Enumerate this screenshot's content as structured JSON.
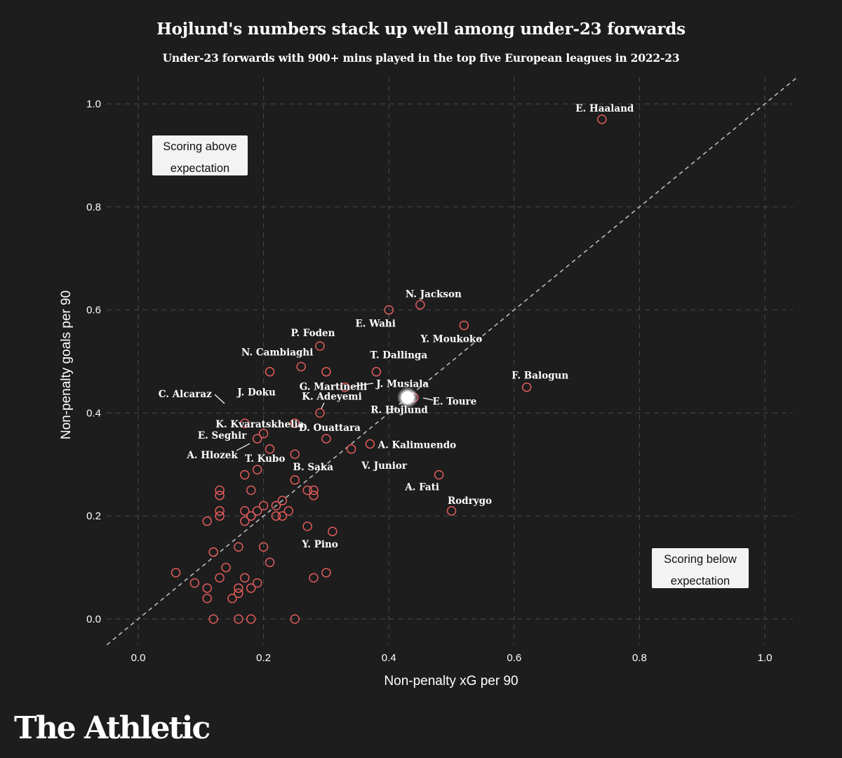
{
  "chart_data": {
    "type": "scatter",
    "title": "Hojlund's numbers stack up well among under-23 forwards",
    "subtitle": "Under-23 forwards with 900+ mins played in the top five European leagues in 2022-23",
    "xlabel": "Non-penalty xG per 90",
    "ylabel": "Non-penalty goals per 90",
    "xlim": [
      -0.05,
      1.05
    ],
    "ylim": [
      -0.05,
      1.05
    ],
    "x_ticks": [
      "0.0",
      "0.2",
      "0.4",
      "0.6",
      "0.8",
      "1.0"
    ],
    "y_ticks": [
      "0.0",
      "0.2",
      "0.4",
      "0.6",
      "0.8",
      "1.0"
    ],
    "grid": true,
    "reference_line": "y = x",
    "annotations": [
      "Scoring above expectation",
      "Scoring below expectation"
    ],
    "colors": {
      "background": "#1d1d1d",
      "marker": "#e05b5b",
      "highlight": "#ffffff",
      "grid": "#4a4a4a",
      "reference": "#bbbbbb"
    },
    "highlight": {
      "name": "R. Hojlund",
      "x": 0.43,
      "y": 0.43
    },
    "labeled_points": [
      {
        "name": "E. Haaland",
        "x": 0.74,
        "y": 0.97
      },
      {
        "name": "N. Jackson",
        "x": 0.45,
        "y": 0.61
      },
      {
        "name": "E. Wahi",
        "x": 0.4,
        "y": 0.6
      },
      {
        "name": "Y. Moukoko",
        "x": 0.52,
        "y": 0.57
      },
      {
        "name": "P. Foden",
        "x": 0.29,
        "y": 0.53
      },
      {
        "name": "T. Dallinga",
        "x": 0.38,
        "y": 0.48
      },
      {
        "name": "N. Cambiaghi",
        "x": 0.26,
        "y": 0.49
      },
      {
        "name": "G. Martinelli",
        "x": 0.3,
        "y": 0.48
      },
      {
        "name": "J. Doku",
        "x": 0.21,
        "y": 0.48
      },
      {
        "name": "J. Musiala",
        "x": 0.33,
        "y": 0.45
      },
      {
        "name": "F. Balogun",
        "x": 0.62,
        "y": 0.45
      },
      {
        "name": "E. Toure",
        "x": 0.44,
        "y": 0.43
      },
      {
        "name": "C. Alcaraz",
        "x": 0.17,
        "y": 0.38
      },
      {
        "name": "K. Adeyemi",
        "x": 0.29,
        "y": 0.4
      },
      {
        "name": "K. Kvaratskhelia",
        "x": 0.25,
        "y": 0.38
      },
      {
        "name": "D. Ouattara",
        "x": 0.3,
        "y": 0.35
      },
      {
        "name": "A. Kalimuendo",
        "x": 0.37,
        "y": 0.34
      },
      {
        "name": "E. Seghir",
        "x": 0.2,
        "y": 0.36
      },
      {
        "name": "A. Hlozek",
        "x": 0.21,
        "y": 0.33
      },
      {
        "name": "V. Junior",
        "x": 0.34,
        "y": 0.33
      },
      {
        "name": "T. Kubo",
        "x": 0.19,
        "y": 0.29
      },
      {
        "name": "B. Saka",
        "x": 0.25,
        "y": 0.27
      },
      {
        "name": "A. Fati",
        "x": 0.48,
        "y": 0.28
      },
      {
        "name": "Rodrygo",
        "x": 0.5,
        "y": 0.21
      },
      {
        "name": "Y. Pino",
        "x": 0.27,
        "y": 0.18
      }
    ],
    "other_points": [
      [
        0.19,
        0.35
      ],
      [
        0.25,
        0.32
      ],
      [
        0.17,
        0.28
      ],
      [
        0.18,
        0.25
      ],
      [
        0.13,
        0.25
      ],
      [
        0.13,
        0.24
      ],
      [
        0.13,
        0.21
      ],
      [
        0.13,
        0.2
      ],
      [
        0.11,
        0.19
      ],
      [
        0.17,
        0.21
      ],
      [
        0.17,
        0.19
      ],
      [
        0.18,
        0.2
      ],
      [
        0.19,
        0.21
      ],
      [
        0.2,
        0.22
      ],
      [
        0.22,
        0.22
      ],
      [
        0.23,
        0.23
      ],
      [
        0.22,
        0.2
      ],
      [
        0.23,
        0.2
      ],
      [
        0.24,
        0.21
      ],
      [
        0.27,
        0.25
      ],
      [
        0.28,
        0.25
      ],
      [
        0.28,
        0.24
      ],
      [
        0.31,
        0.17
      ],
      [
        0.12,
        0.13
      ],
      [
        0.16,
        0.14
      ],
      [
        0.2,
        0.14
      ],
      [
        0.21,
        0.11
      ],
      [
        0.14,
        0.1
      ],
      [
        0.06,
        0.09
      ],
      [
        0.09,
        0.07
      ],
      [
        0.11,
        0.06
      ],
      [
        0.11,
        0.04
      ],
      [
        0.13,
        0.08
      ],
      [
        0.15,
        0.04
      ],
      [
        0.16,
        0.05
      ],
      [
        0.16,
        0.06
      ],
      [
        0.17,
        0.08
      ],
      [
        0.18,
        0.06
      ],
      [
        0.19,
        0.07
      ],
      [
        0.28,
        0.08
      ],
      [
        0.3,
        0.09
      ],
      [
        0.12,
        0.0
      ],
      [
        0.16,
        0.0
      ],
      [
        0.18,
        0.0
      ],
      [
        0.25,
        0.0
      ]
    ]
  },
  "brand": "The Athletic"
}
